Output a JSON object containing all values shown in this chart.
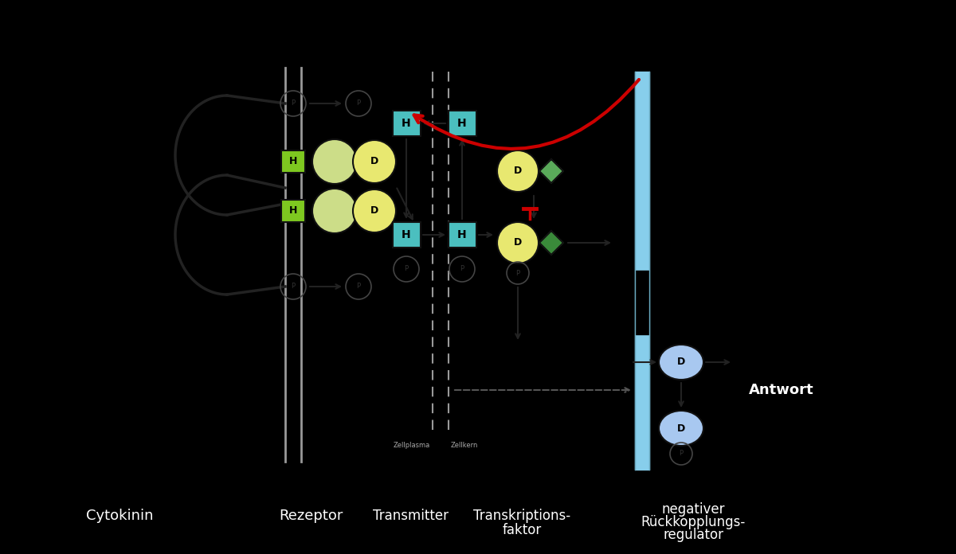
{
  "bg_color": "#000000",
  "wall_color": "#999999",
  "blue_bar_color": "#87CEEB",
  "cyan_box_color": "#4BBFBF",
  "green_box_color": "#7EC820",
  "light_green_circle_color": "#CCDD88",
  "yellow_circle_color": "#E8E870",
  "dark_green_diamond_color": "#3A8A3A",
  "light_green_diamond_color": "#5AAA5A",
  "light_blue_circle_color": "#A8C8F0",
  "arrow_color": "#222222",
  "red_arrow_color": "#CC0000",
  "white": "#ffffff",
  "labels": {
    "cytokinin": "Cytokinin",
    "rezeptor": "Rezeptor",
    "transmitter": "Transmitter",
    "transkriptions1": "Transkriptions-",
    "transkriptions2": "faktor",
    "negativer1": "negativer",
    "negativer2": "Rückkopplungs-",
    "negativer3": "regulator",
    "antwort": "Antwort",
    "zellplasma": "Zellplasma",
    "zellkern": "Zellkern"
  }
}
